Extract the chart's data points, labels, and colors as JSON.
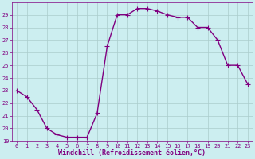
{
  "x": [
    0,
    1,
    2,
    3,
    4,
    5,
    6,
    7,
    8,
    9,
    10,
    11,
    12,
    13,
    14,
    15,
    16,
    17,
    18,
    19,
    20,
    21,
    22,
    23
  ],
  "y": [
    23,
    22.5,
    21.5,
    20,
    19.5,
    19.3,
    19.3,
    19.3,
    21.2,
    26.5,
    29,
    29,
    29.5,
    29.5,
    29.3,
    29,
    28.8,
    28.8,
    28,
    28,
    27,
    25,
    25,
    23.5
  ],
  "line_color": "#800080",
  "marker_color": "#800080",
  "bg_color": "#cceef0",
  "grid_color": "#aacccc",
  "xlabel": "Windchill (Refroidissement éolien,°C)",
  "xlabel_color": "#800080",
  "xlim": [
    -0.5,
    23.5
  ],
  "ylim": [
    19,
    30
  ],
  "yticks": [
    19,
    20,
    21,
    22,
    23,
    24,
    25,
    26,
    27,
    28,
    29
  ],
  "xticks": [
    0,
    1,
    2,
    3,
    4,
    5,
    6,
    7,
    8,
    9,
    10,
    11,
    12,
    13,
    14,
    15,
    16,
    17,
    18,
    19,
    20,
    21,
    22,
    23
  ],
  "tick_label_color": "#800080",
  "tick_label_size": 5.0,
  "xlabel_size": 6.0,
  "line_width": 1.0,
  "marker_size": 2.0
}
